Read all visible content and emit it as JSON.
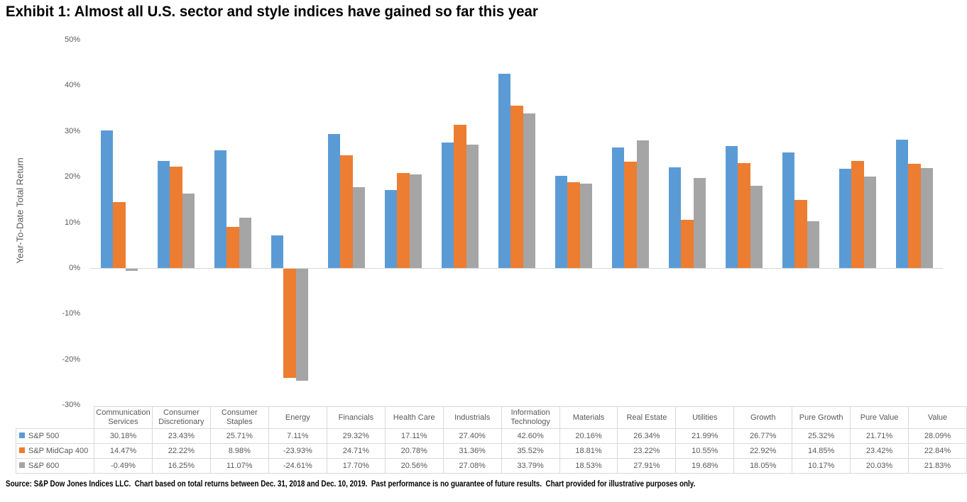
{
  "title": "Exhibit 1: Almost all U.S. sector and style indices have gained so far this year",
  "footer": "Source: S&P Dow Jones Indices LLC.  Chart based on total returns between Dec. 31, 2018 and Dec. 10, 2019.  Past performance is no guarantee of future results.  Chart provided for illustrative purposes only.",
  "colors": {
    "sp500": "#5B9BD5",
    "midcap400": "#ED7D31",
    "sp600": "#A5A5A5",
    "axis_line": "#D9D9D9",
    "table_border": "#D9D9D9",
    "text_gray": "#595959"
  },
  "chart_data": {
    "type": "bar",
    "title": "Exhibit 1: Almost all U.S. sector and style indices have gained so far this year",
    "xlabel": "",
    "ylabel": "Year-To-Date Total Return",
    "ylim": [
      -30,
      50
    ],
    "ytick_step": 10,
    "ytick_labels": [
      "50%",
      "40%",
      "30%",
      "20%",
      "10%",
      "0%",
      "-10%",
      "-20%",
      "-30%"
    ],
    "grid": false,
    "legend_position": "data-table-left",
    "value_format": "percent-2dp",
    "categories": [
      "Communication Services",
      "Consumer Discretionary",
      "Consumer Staples",
      "Energy",
      "Financials",
      "Health Care",
      "Industrials",
      "Information Technology",
      "Materials",
      "Real Estate",
      "Utilities",
      "Growth",
      "Pure Growth",
      "Pure Value",
      "Value"
    ],
    "series": [
      {
        "name": "S&P 500",
        "color": "#5B9BD5",
        "values": [
          30.18,
          23.43,
          25.71,
          7.11,
          29.32,
          17.11,
          27.4,
          42.6,
          20.16,
          26.34,
          21.99,
          26.77,
          25.32,
          21.71,
          28.09
        ]
      },
      {
        "name": "S&P MidCap 400",
        "color": "#ED7D31",
        "values": [
          14.47,
          22.22,
          8.98,
          -23.93,
          24.71,
          20.78,
          31.36,
          35.52,
          18.81,
          23.22,
          10.55,
          22.92,
          14.85,
          23.42,
          22.84
        ]
      },
      {
        "name": "S&P 600",
        "color": "#A5A5A5",
        "values": [
          -0.49,
          16.25,
          11.07,
          -24.61,
          17.7,
          20.56,
          27.08,
          33.79,
          18.53,
          27.91,
          19.68,
          18.05,
          10.17,
          20.03,
          21.83
        ]
      }
    ]
  }
}
